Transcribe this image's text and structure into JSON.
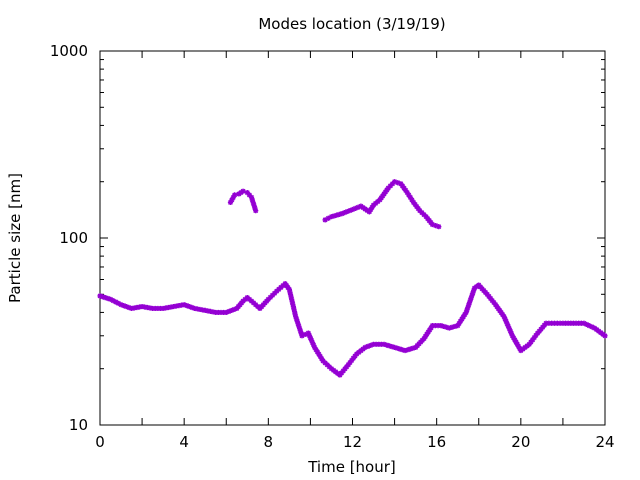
{
  "chart_data": {
    "type": "scatter",
    "title": "Modes location (3/19/19)",
    "xlabel": "Time [hour]",
    "ylabel": "Particle size [nm]",
    "xlim": [
      0,
      24
    ],
    "ylim": [
      10,
      1000
    ],
    "yscale": "log",
    "grid": false,
    "legend": "none",
    "marker_color": "#9400d3",
    "xticks": [
      0,
      4,
      8,
      12,
      16,
      20,
      24
    ],
    "xtick_labels": [
      "0",
      "4",
      "8",
      "12",
      "16",
      "20",
      "24"
    ],
    "yticks": [
      10,
      100,
      1000
    ],
    "ytick_labels": [
      "10",
      "100",
      "1000"
    ],
    "series": [
      {
        "x": [
          0,
          0.5,
          1,
          1.5,
          2,
          2.5,
          3,
          3.5,
          4,
          4.5,
          5,
          5.5,
          6,
          6.5,
          6.8,
          7,
          7.2,
          7.6,
          8,
          8.4,
          8.8,
          9,
          9.3,
          9.6,
          9.9,
          10.2,
          10.6,
          11,
          11.4,
          11.8,
          12.2,
          12.6,
          13,
          13.5,
          14,
          14.5,
          15,
          15.4,
          15.8,
          16.2,
          16.6,
          17,
          17.4,
          17.8,
          18,
          18.4,
          18.8,
          19.2,
          19.6,
          20,
          20.4,
          20.8,
          21.2,
          21.6,
          22,
          22.5,
          23,
          23.5,
          24
        ],
        "y": [
          49,
          47,
          44,
          42,
          43,
          42,
          42,
          43,
          44,
          42,
          41,
          40,
          40,
          42,
          46,
          48,
          46,
          42,
          47,
          52,
          57,
          53,
          38,
          30,
          31,
          26,
          22,
          20,
          18.5,
          21,
          24,
          26,
          27,
          27,
          26,
          25,
          26,
          29,
          34,
          34,
          33,
          34,
          40,
          54,
          56,
          50,
          44,
          38,
          30,
          25,
          27,
          31,
          35,
          35,
          35,
          35,
          35,
          33,
          30
        ]
      },
      {
        "x": [
          6.2,
          6.4,
          6.6,
          6.8,
          7,
          7.2,
          7.4
        ],
        "y": [
          155,
          170,
          172,
          178,
          175,
          165,
          140
        ]
      },
      {
        "x": [
          10.7,
          11,
          11.5,
          12,
          12.4,
          12.8,
          13,
          13.3,
          13.7,
          14,
          14.3,
          14.6,
          14.9,
          15.2,
          15.5,
          15.8,
          16.1
        ],
        "y": [
          125,
          130,
          135,
          142,
          148,
          138,
          150,
          160,
          185,
          200,
          195,
          175,
          155,
          140,
          130,
          118,
          115
        ]
      }
    ]
  }
}
